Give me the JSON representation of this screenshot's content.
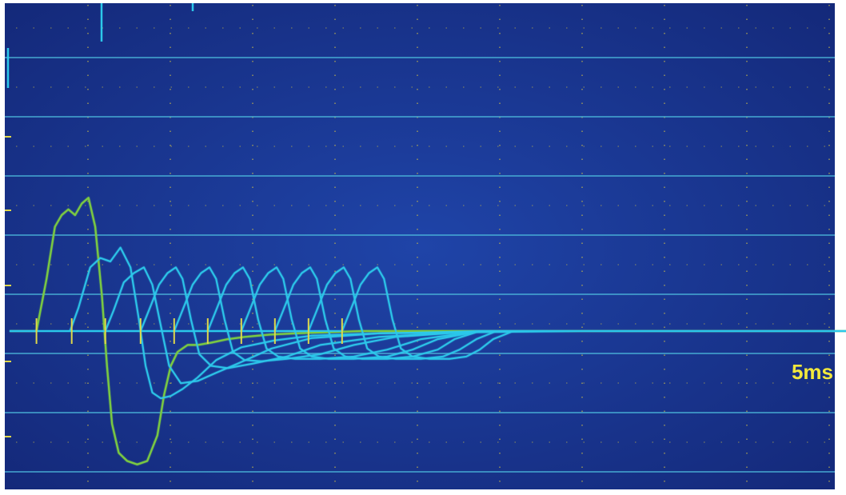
{
  "scope": {
    "scale_label": "5ms",
    "colors": {
      "screen": "#1d3c95",
      "screen_dark": "#14297a",
      "gridline": "#4fc0e0",
      "grid_dots": "#c8b84a",
      "trace_first": "#7ac943",
      "trace_others": "#2cc8ea",
      "ticks": "#e0d84a",
      "label": "#f2e83c"
    }
  },
  "chart_data": {
    "type": "line",
    "title": "",
    "xlabel": "",
    "ylabel": "",
    "grid": true,
    "time_per_division": "5ms",
    "x_unit": "ms",
    "xlim": [
      0,
      67
    ],
    "ylim": [
      -1.3,
      1.5
    ],
    "tick_marks_x": [
      1.6,
      3.7,
      5.7,
      7.8,
      9.8,
      11.8,
      13.8,
      15.8,
      17.8,
      19.8
    ],
    "series": [
      {
        "x": [
          0,
          1.6,
          2.2,
          2.7,
          3.1,
          3.5,
          3.9,
          4.3,
          4.7,
          5.1,
          5.5,
          5.8,
          6.1,
          6.5,
          7.0,
          7.6,
          8.2,
          8.8,
          9.2,
          9.6,
          10.0,
          10.6,
          11.2,
          12.0,
          13.0,
          14.0,
          15.5,
          17.0,
          19.0,
          21.0,
          24.0,
          27.0,
          30.0,
          34.0,
          38.0,
          67.0
        ],
        "y": [
          0,
          0,
          0.45,
          0.9,
          1.0,
          1.05,
          1.0,
          1.1,
          1.15,
          0.9,
          0.3,
          -0.3,
          -0.8,
          -1.05,
          -1.12,
          -1.15,
          -1.12,
          -0.9,
          -0.55,
          -0.3,
          -0.18,
          -0.12,
          -0.12,
          -0.1,
          -0.07,
          -0.05,
          -0.03,
          -0.02,
          -0.01,
          0,
          0,
          0,
          0,
          0,
          0,
          0
        ]
      },
      {
        "x": [
          0,
          3.6,
          4.1,
          4.8,
          5.4,
          6.0,
          6.6,
          7.2,
          7.7,
          8.1,
          8.5,
          9.0,
          9.6,
          10.3,
          11.2,
          12.3,
          13.8,
          15.8,
          18.0,
          22.0,
          28.0,
          34.0,
          67.0
        ],
        "y": [
          0,
          0,
          0.2,
          0.55,
          0.63,
          0.6,
          0.72,
          0.55,
          0.1,
          -0.3,
          -0.53,
          -0.58,
          -0.56,
          -0.5,
          -0.4,
          -0.25,
          -0.14,
          -0.08,
          -0.04,
          -0.02,
          -0.01,
          0,
          0
        ]
      },
      {
        "x": [
          0,
          5.7,
          6.2,
          6.8,
          7.4,
          8.0,
          8.5,
          9.0,
          9.5,
          10.2,
          11.2,
          12.3,
          13.6,
          15.6,
          18.0,
          22.0,
          28.0,
          67.0
        ],
        "y": [
          0,
          0,
          0.18,
          0.42,
          0.5,
          0.55,
          0.4,
          0.05,
          -0.3,
          -0.45,
          -0.43,
          -0.36,
          -0.28,
          -0.15,
          -0.06,
          -0.02,
          0,
          0
        ]
      },
      {
        "x": [
          0,
          7.8,
          8.3,
          8.9,
          9.4,
          9.9,
          10.3,
          10.8,
          11.3,
          12.0,
          13.0,
          14.5,
          16.5,
          18.5,
          22.0,
          28.0,
          67.0
        ],
        "y": [
          0,
          0,
          0.18,
          0.4,
          0.5,
          0.55,
          0.45,
          0.1,
          -0.2,
          -0.3,
          -0.32,
          -0.28,
          -0.22,
          -0.12,
          -0.05,
          0,
          0
        ]
      },
      {
        "x": [
          0,
          9.8,
          10.3,
          10.9,
          11.4,
          11.9,
          12.3,
          12.8,
          13.3,
          14.0,
          15.0,
          16.5,
          18.5,
          20.5,
          23.0,
          28.0,
          67.0
        ],
        "y": [
          0,
          0,
          0.18,
          0.4,
          0.5,
          0.55,
          0.45,
          0.1,
          -0.18,
          -0.25,
          -0.26,
          -0.24,
          -0.2,
          -0.12,
          -0.05,
          0,
          0
        ]
      },
      {
        "x": [
          0,
          11.8,
          12.3,
          12.9,
          13.4,
          13.9,
          14.3,
          14.8,
          15.3,
          16.0,
          17.0,
          18.5,
          20.5,
          22.5,
          24.5,
          28.0,
          67.0
        ],
        "y": [
          0,
          0,
          0.18,
          0.4,
          0.5,
          0.55,
          0.45,
          0.1,
          -0.15,
          -0.22,
          -0.24,
          -0.24,
          -0.22,
          -0.16,
          -0.07,
          0,
          0
        ]
      },
      {
        "x": [
          0,
          13.8,
          14.3,
          14.9,
          15.4,
          15.9,
          16.3,
          16.8,
          17.3,
          18.0,
          19.0,
          20.5,
          22.5,
          24.0,
          25.5,
          28.0,
          67.0
        ],
        "y": [
          0,
          0,
          0.18,
          0.4,
          0.5,
          0.55,
          0.45,
          0.1,
          -0.15,
          -0.22,
          -0.24,
          -0.24,
          -0.22,
          -0.16,
          -0.07,
          0,
          0
        ]
      },
      {
        "x": [
          0,
          15.8,
          16.3,
          16.9,
          17.4,
          17.9,
          18.3,
          18.8,
          19.3,
          20.0,
          21.0,
          22.5,
          24.0,
          25.5,
          26.5,
          28.0,
          67.0
        ],
        "y": [
          0,
          0,
          0.18,
          0.4,
          0.5,
          0.55,
          0.45,
          0.1,
          -0.15,
          -0.22,
          -0.24,
          -0.24,
          -0.22,
          -0.16,
          -0.07,
          0,
          0
        ]
      },
      {
        "x": [
          0,
          17.8,
          18.3,
          18.9,
          19.4,
          19.9,
          20.3,
          20.8,
          21.3,
          22.0,
          23.0,
          24.5,
          25.8,
          26.8,
          27.8,
          29.0,
          67.0
        ],
        "y": [
          0,
          0,
          0.18,
          0.4,
          0.5,
          0.55,
          0.45,
          0.1,
          -0.15,
          -0.22,
          -0.24,
          -0.24,
          -0.22,
          -0.16,
          -0.07,
          0,
          0
        ]
      },
      {
        "x": [
          0,
          19.8,
          20.3,
          20.9,
          21.4,
          21.9,
          22.3,
          22.8,
          23.3,
          24.0,
          25.0,
          26.2,
          27.2,
          28.0,
          28.8,
          30.0,
          67.0
        ],
        "y": [
          0,
          0,
          0.18,
          0.4,
          0.5,
          0.55,
          0.45,
          0.1,
          -0.15,
          -0.22,
          -0.24,
          -0.24,
          -0.22,
          -0.16,
          -0.07,
          0,
          0
        ]
      }
    ]
  }
}
